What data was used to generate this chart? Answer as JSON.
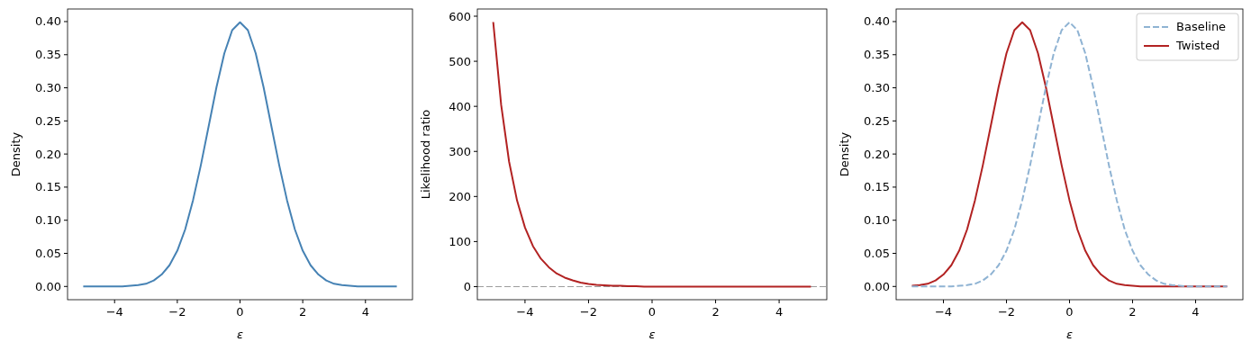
{
  "chart_data": [
    {
      "type": "line",
      "xlabel": "ε",
      "ylabel": "Density",
      "xlim": [
        -5.5,
        5.5
      ],
      "ylim": [
        -0.02,
        0.419
      ],
      "xticks": [
        -4,
        -2,
        0,
        2,
        4
      ],
      "yticks": [
        {
          "value": 0,
          "label": "0.00"
        },
        {
          "value": 0.05,
          "label": "0.05"
        },
        {
          "value": 0.1,
          "label": "0.10"
        },
        {
          "value": 0.15,
          "label": "0.15"
        },
        {
          "value": 0.2,
          "label": "0.20"
        },
        {
          "value": 0.25,
          "label": "0.25"
        },
        {
          "value": 0.3,
          "label": "0.30"
        },
        {
          "value": 0.35,
          "label": "0.35"
        },
        {
          "value": 0.4,
          "label": "0.40"
        }
      ],
      "x": [
        -5,
        -4.75,
        -4.5,
        -4.25,
        -4,
        -3.75,
        -3.5,
        -3.25,
        -3,
        -2.75,
        -2.5,
        -2.25,
        -2,
        -1.75,
        -1.5,
        -1.25,
        -1,
        -0.75,
        -0.5,
        -0.25,
        0,
        0.25,
        0.5,
        0.75,
        1,
        1.25,
        1.5,
        1.75,
        2,
        2.25,
        2.5,
        2.75,
        3,
        3.25,
        3.5,
        3.75,
        4,
        4.25,
        4.5,
        4.75,
        5
      ],
      "series": [
        {
          "color": "#4682b4",
          "values": [
            0,
            0,
            0,
            0,
            0,
            0,
            0.001,
            0.002,
            0.004,
            0.009,
            0.018,
            0.032,
            0.054,
            0.086,
            0.13,
            0.183,
            0.242,
            0.301,
            0.352,
            0.387,
            0.399,
            0.387,
            0.352,
            0.301,
            0.242,
            0.183,
            0.13,
            0.086,
            0.054,
            0.032,
            0.018,
            0.009,
            0.004,
            0.002,
            0.001,
            0,
            0,
            0,
            0,
            0,
            0
          ]
        }
      ]
    },
    {
      "type": "line",
      "xlabel": "ε",
      "ylabel": "Likelihood ratio",
      "xlim": [
        -5.5,
        5.5
      ],
      "ylim": [
        -29,
        616
      ],
      "xticks": [
        -4,
        -2,
        0,
        2,
        4
      ],
      "yticks": [
        0,
        100,
        200,
        300,
        400,
        500,
        600
      ],
      "x": [
        -5,
        -4.75,
        -4.5,
        -4.25,
        -4,
        -3.75,
        -3.5,
        -3.25,
        -3,
        -2.75,
        -2.5,
        -2.25,
        -2,
        -1.75,
        -1.5,
        -1.25,
        -1,
        -0.75,
        -0.5,
        -0.25,
        0,
        0.25,
        0.5,
        0.75,
        1,
        1.25,
        1.5,
        1.75,
        2,
        2.25,
        2.5,
        2.75,
        3,
        3.25,
        3.5,
        3.75,
        4,
        4.25,
        4.5,
        4.75,
        5
      ],
      "series": [
        {
          "color": "#b22222",
          "values": [
            587,
            403,
            277,
            191,
            131,
            90,
            62,
            43,
            29,
            20,
            14,
            9,
            6,
            4,
            3,
            2,
            2,
            1,
            1,
            0,
            0,
            0,
            0,
            0,
            0,
            0,
            0,
            0,
            0,
            0,
            0,
            0,
            0,
            0,
            0,
            0,
            0,
            0,
            0,
            0,
            0
          ]
        }
      ],
      "ref_lines": [
        {
          "axis": "y",
          "value": 0,
          "color": "#808080",
          "line_style": "dashed"
        }
      ]
    },
    {
      "type": "line",
      "xlabel": "ε",
      "ylabel": "Density",
      "xlim": [
        -5.5,
        5.5
      ],
      "ylim": [
        -0.02,
        0.419
      ],
      "legend": "top right",
      "xticks": [
        -4,
        -2,
        0,
        2,
        4
      ],
      "yticks": [
        {
          "value": 0,
          "label": "0.00"
        },
        {
          "value": 0.05,
          "label": "0.05"
        },
        {
          "value": 0.1,
          "label": "0.10"
        },
        {
          "value": 0.15,
          "label": "0.15"
        },
        {
          "value": 0.2,
          "label": "0.20"
        },
        {
          "value": 0.25,
          "label": "0.25"
        },
        {
          "value": 0.3,
          "label": "0.30"
        },
        {
          "value": 0.35,
          "label": "0.35"
        },
        {
          "value": 0.4,
          "label": "0.40"
        }
      ],
      "x": [
        -5,
        -4.75,
        -4.5,
        -4.25,
        -4,
        -3.75,
        -3.5,
        -3.25,
        -3,
        -2.75,
        -2.5,
        -2.25,
        -2,
        -1.75,
        -1.5,
        -1.25,
        -1,
        -0.75,
        -0.5,
        -0.25,
        0,
        0.25,
        0.5,
        0.75,
        1,
        1.25,
        1.5,
        1.75,
        2,
        2.25,
        2.5,
        2.75,
        3,
        3.25,
        3.5,
        3.75,
        4,
        4.25,
        4.5,
        4.75,
        5
      ],
      "series": [
        {
          "name": "Baseline",
          "color": "#8fb3d3",
          "line_style": "dashed",
          "values": [
            0,
            0,
            0,
            0,
            0,
            0,
            0.001,
            0.002,
            0.004,
            0.009,
            0.018,
            0.032,
            0.054,
            0.086,
            0.13,
            0.183,
            0.242,
            0.301,
            0.352,
            0.387,
            0.399,
            0.387,
            0.352,
            0.301,
            0.242,
            0.183,
            0.13,
            0.086,
            0.054,
            0.032,
            0.018,
            0.009,
            0.004,
            0.002,
            0.001,
            0,
            0,
            0,
            0,
            0,
            0
          ]
        },
        {
          "name": "Twisted",
          "color": "#b22222",
          "values": [
            0.001,
            0.002,
            0.004,
            0.009,
            0.018,
            0.032,
            0.054,
            0.086,
            0.13,
            0.183,
            0.242,
            0.301,
            0.352,
            0.387,
            0.399,
            0.387,
            0.352,
            0.301,
            0.242,
            0.183,
            0.13,
            0.086,
            0.054,
            0.032,
            0.018,
            0.009,
            0.004,
            0.002,
            0.001,
            0,
            0,
            0,
            0,
            0,
            0,
            0,
            0,
            0,
            0,
            0,
            0
          ]
        }
      ]
    }
  ]
}
